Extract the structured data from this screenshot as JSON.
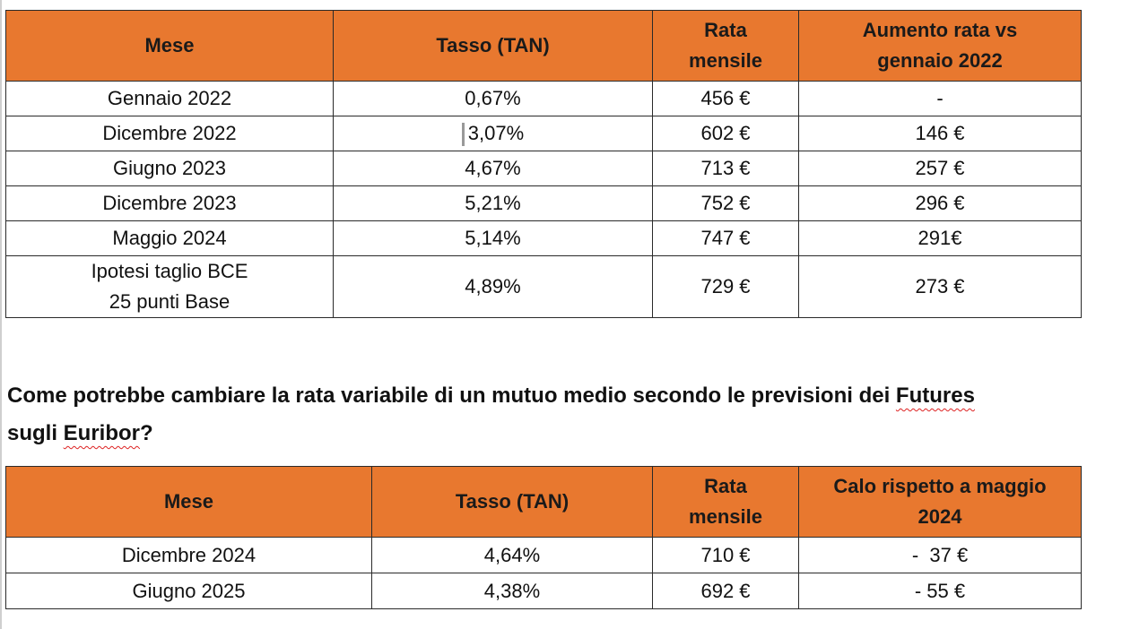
{
  "table1": {
    "headers": [
      "Mese",
      "Tasso (TAN)",
      "Rata mensile",
      "Aumento rata vs gennaio 2022"
    ],
    "header_lines": {
      "col3": [
        "Rata",
        "mensile"
      ],
      "col4": [
        "Aumento rata vs",
        "gennaio 2022"
      ]
    },
    "rows": [
      {
        "mese": "Gennaio 2022",
        "tasso": "0,67%",
        "rata": "456 €",
        "aumento": "-"
      },
      {
        "mese": "Dicembre 2022",
        "tasso": "3,07%",
        "rata": "602 €",
        "aumento": "146 €"
      },
      {
        "mese": "Giugno 2023",
        "tasso": "4,67%",
        "rata": "713 €",
        "aumento": "257 €"
      },
      {
        "mese": "Dicembre 2023",
        "tasso": "5,21%",
        "rata": "752 €",
        "aumento": "296 €"
      },
      {
        "mese": "Maggio 2024",
        "tasso": "5,14%",
        "rata": "747 €",
        "aumento": "291€"
      },
      {
        "mese_lines": [
          "Ipotesi taglio BCE",
          "25 punti Base"
        ],
        "tasso": "4,89%",
        "rata": "729 €",
        "aumento": "273 €"
      }
    ]
  },
  "question": {
    "part1": "Come potrebbe cambiare la rata variabile di un mutuo medio secondo le previsioni dei ",
    "futures": "Futures",
    "part2": "sugli ",
    "euribor": "Euribor",
    "part3": "?"
  },
  "table2": {
    "headers": [
      "Mese",
      "Tasso (TAN)",
      "Rata mensile",
      "Calo rispetto a maggio 2024"
    ],
    "header_lines": {
      "col3": [
        "Rata",
        "mensile"
      ],
      "col4": [
        "Calo rispetto a maggio",
        "2024"
      ]
    },
    "rows": [
      {
        "mese": "Dicembre 2024",
        "tasso": "4,64%",
        "rata": "710 €",
        "calo": "-  37 €"
      },
      {
        "mese": "Giugno 2025",
        "tasso": "4,38%",
        "rata": "692 €",
        "calo": "- 55 €"
      }
    ]
  },
  "colors": {
    "header_bg": "#e8782f",
    "border": "#2a2a2a",
    "spellcheck": "#dd2222"
  }
}
